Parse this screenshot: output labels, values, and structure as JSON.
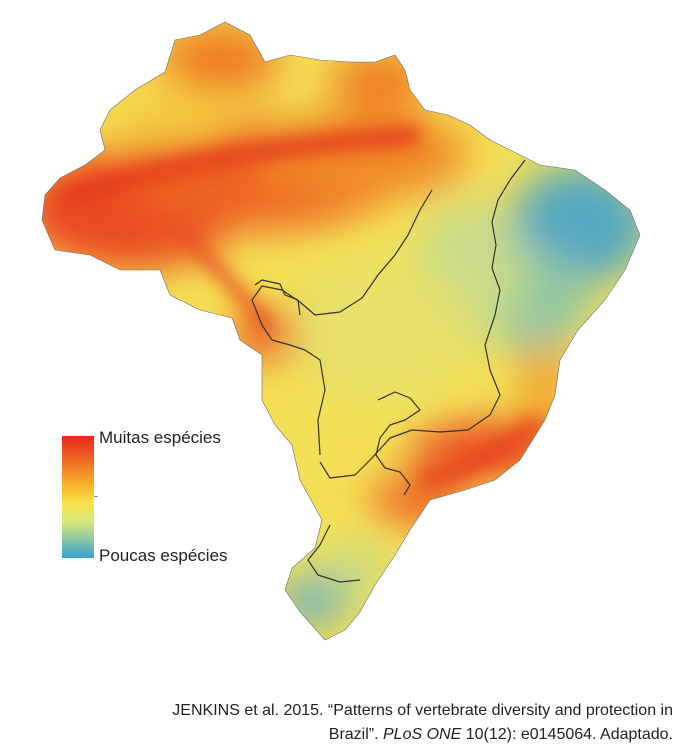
{
  "legend": {
    "high_label": "Muitas espécies",
    "low_label": "Poucas espécies",
    "colors": {
      "high": "#e8281d",
      "mid_high": "#f7b22e",
      "mid": "#f8e54a",
      "mid_low": "#8ac8a3",
      "low": "#37a0cf"
    }
  },
  "caption": {
    "line1": "JENKINS et al. 2015. “Patterns of vertebrate diversity and protection in",
    "line2_pre": "Brazil”. ",
    "line2_journal": "PLoS ONE",
    "line2_post": " 10(12): e0145064. Adaptado."
  }
}
